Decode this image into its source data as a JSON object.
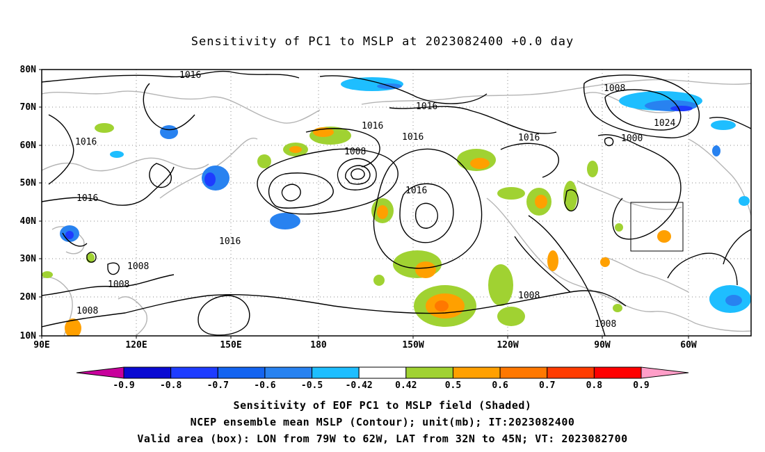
{
  "title": "Sensitivity of PC1 to MSLP at 2023082400 +0.0 day",
  "map": {
    "lat_labels": [
      "80N",
      "70N",
      "60N",
      "50N",
      "40N",
      "30N",
      "20N",
      "10N"
    ],
    "lon_labels": [
      "90E",
      "120E",
      "150E",
      "180",
      "150W",
      "120W",
      "90W",
      "60W"
    ],
    "contour_labels": [
      {
        "text": "1016"
      },
      {
        "text": "1016"
      },
      {
        "text": "1016"
      },
      {
        "text": "1016"
      },
      {
        "text": "1016"
      },
      {
        "text": "1016"
      },
      {
        "text": "1016"
      },
      {
        "text": "1016"
      },
      {
        "text": "1008"
      },
      {
        "text": "1008"
      },
      {
        "text": "1008"
      },
      {
        "text": "1008"
      },
      {
        "text": "1008"
      },
      {
        "text": "1008"
      },
      {
        "text": "1008"
      },
      {
        "text": "1000"
      },
      {
        "text": "1024"
      },
      {
        "text": "1016"
      }
    ],
    "valid_box": {
      "lon_from": "79W",
      "lon_to": "62W",
      "lat_from": "32N",
      "lat_to": "45N"
    }
  },
  "colorbar": {
    "labels": [
      "-0.9",
      "-0.8",
      "-0.7",
      "-0.6",
      "-0.5",
      "-0.42",
      "0.42",
      "0.5",
      "0.6",
      "0.7",
      "0.8",
      "0.9"
    ],
    "colors": [
      "#c8009c",
      "#0a0ad2",
      "#1e3cff",
      "#1464f0",
      "#2882f0",
      "#1ebeff",
      "#ffffff",
      "#a0d232",
      "#ffa000",
      "#ff7800",
      "#ff3c00",
      "#ff0000",
      "#ff9ec8"
    ]
  },
  "captions": {
    "line1": "Sensitivity of EOF PC1 to MSLP field (Shaded)",
    "line2": "NCEP ensemble mean MSLP (Contour); unit(mb); IT:2023082400",
    "line3": "Valid area (box): LON from 79W to 62W, LAT from 32N to 45N; VT: 2023082700"
  }
}
